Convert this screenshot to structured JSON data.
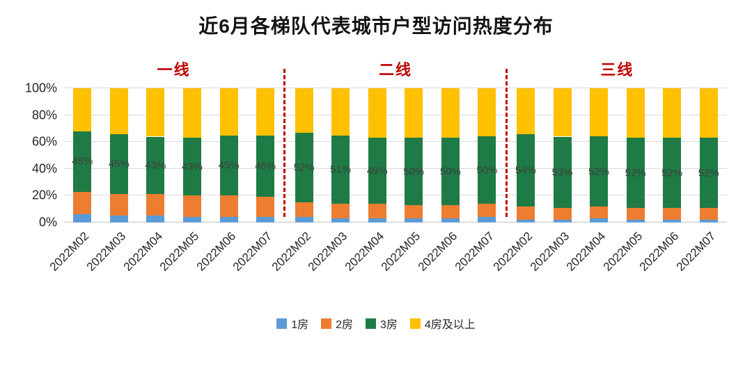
{
  "title": "近6月各梯队代表城市户型访问热度分布",
  "y_axis": {
    "ticks": [
      {
        "v": 0,
        "label": "0%"
      },
      {
        "v": 20,
        "label": "20%"
      },
      {
        "v": 40,
        "label": "40%"
      },
      {
        "v": 60,
        "label": "60%"
      },
      {
        "v": 80,
        "label": "80%"
      },
      {
        "v": 100,
        "label": "100%"
      }
    ]
  },
  "legend": {
    "items": [
      {
        "label": "1房",
        "color": "#5B9BD5"
      },
      {
        "label": "2房",
        "color": "#ED7D31"
      },
      {
        "label": "3房",
        "color": "#1E7B45"
      },
      {
        "label": "4房及以上",
        "color": "#FFC000"
      }
    ]
  },
  "colors": {
    "tier_label": "#C00000",
    "divider": "#C00000",
    "gridline": "#D9D9D9",
    "axis_text": "#262626",
    "data_label": "#3f3f3f"
  },
  "chart_data": {
    "type": "bar",
    "stacked": true,
    "percent": true,
    "ylim": [
      0,
      100
    ],
    "title": "近6月各梯队代表城市户型访问热度分布",
    "label_series": "3房",
    "series_names": [
      "1房",
      "2房",
      "3房",
      "4房及以上"
    ],
    "groups": [
      {
        "name": "一线",
        "categories": [
          "2022M02",
          "2022M03",
          "2022M04",
          "2022M05",
          "2022M06",
          "2022M07"
        ],
        "series": [
          {
            "name": "1房",
            "values": [
              6,
              5,
              5,
              4,
              4,
              4
            ]
          },
          {
            "name": "2房",
            "values": [
              17,
              16,
              16,
              16,
              16,
              15
            ]
          },
          {
            "name": "3房",
            "values": [
              45,
              45,
              43,
              43,
              45,
              46
            ]
          },
          {
            "name": "4房及以上",
            "values": [
              32,
              34,
              36,
              37,
              35,
              35
            ]
          }
        ],
        "data_labels": [
          "45%",
          "45%",
          "43%",
          "43%",
          "45%",
          "46%"
        ]
      },
      {
        "name": "二线",
        "categories": [
          "2022M02",
          "2022M03",
          "2022M04",
          "2022M05",
          "2022M06",
          "2022M07"
        ],
        "series": [
          {
            "name": "1房",
            "values": [
              4,
              3,
              3,
              3,
              3,
              4
            ]
          },
          {
            "name": "2房",
            "values": [
              11,
              11,
              11,
              10,
              10,
              10
            ]
          },
          {
            "name": "3房",
            "values": [
              52,
              51,
              49,
              50,
              50,
              50
            ]
          },
          {
            "name": "4房及以上",
            "values": [
              33,
              35,
              37,
              37,
              37,
              36
            ]
          }
        ],
        "data_labels": [
          "52%",
          "51%",
          "49%",
          "50%",
          "50%",
          "50%"
        ]
      },
      {
        "name": "三线",
        "categories": [
          "2022M02",
          "2022M03",
          "2022M04",
          "2022M05",
          "2022M06",
          "2022M07"
        ],
        "series": [
          {
            "name": "1房",
            "values": [
              2,
              2,
              3,
              2,
              2,
              2
            ]
          },
          {
            "name": "2房",
            "values": [
              10,
              9,
              9,
              9,
              9,
              9
            ]
          },
          {
            "name": "3房",
            "values": [
              54,
              53,
              52,
              52,
              52,
              52
            ]
          },
          {
            "name": "4房及以上",
            "values": [
              34,
              36,
              36,
              37,
              37,
              37
            ]
          }
        ],
        "data_labels": [
          "54%",
          "53%",
          "52%",
          "52%",
          "52%",
          "52%"
        ]
      }
    ]
  }
}
